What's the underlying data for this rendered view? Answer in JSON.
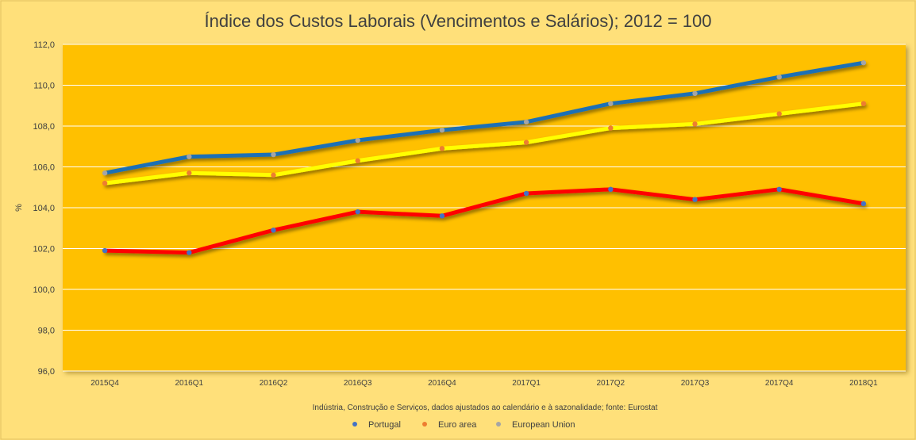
{
  "chart_data": {
    "type": "line",
    "title": "Índice dos Custos Laborais (Vencimentos e Salários); 2012 = 100",
    "ylabel": "%",
    "xlabel": "",
    "note": "Indústria, Construção e Serviços, dados ajustados ao calendário e à sazonalidade;  fonte: Eurostat",
    "ylim": [
      96,
      112
    ],
    "ystep": 2,
    "yticks": [
      "96,0",
      "98,0",
      "100,0",
      "102,0",
      "104,0",
      "106,0",
      "108,0",
      "110,0",
      "112,0"
    ],
    "categories": [
      "2015Q4",
      "2016Q1",
      "2016Q2",
      "2016Q3",
      "2016Q4",
      "2017Q1",
      "2017Q2",
      "2017Q3",
      "2017Q4",
      "2018Q1"
    ],
    "grid": true,
    "legend_position": "bottom",
    "series": [
      {
        "name": "Portugal",
        "values": [
          101.9,
          101.8,
          102.9,
          103.8,
          103.6,
          104.7,
          104.9,
          104.4,
          104.9,
          104.2
        ],
        "color": "#FF0000",
        "marker": "#4472C4"
      },
      {
        "name": "Euro area",
        "values": [
          105.2,
          105.7,
          105.6,
          106.3,
          106.9,
          107.2,
          107.9,
          108.1,
          108.6,
          109.1
        ],
        "color": "#FFFF00",
        "marker": "#ED7D31"
      },
      {
        "name": "European Union",
        "values": [
          105.7,
          106.5,
          106.6,
          107.3,
          107.8,
          108.2,
          109.1,
          109.6,
          110.4,
          111.1
        ],
        "color": "#1F6FB5",
        "marker": "#A5A5A5"
      }
    ]
  },
  "colors": {
    "background": "#FFE07A",
    "plot_background": "#FFC000",
    "grid": "#FFFFFF",
    "text": "#404040"
  }
}
